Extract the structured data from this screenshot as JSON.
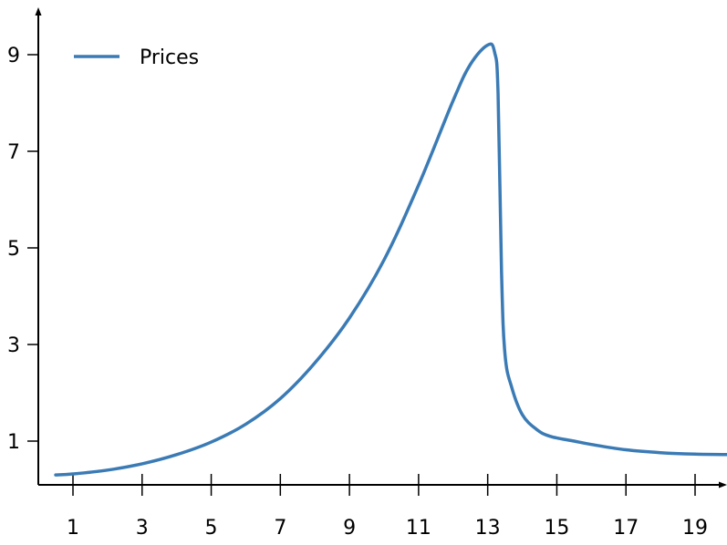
{
  "chart_data": {
    "type": "line",
    "title": "",
    "xlabel": "",
    "ylabel": "",
    "xlim": [
      0,
      20.0
    ],
    "ylim": [
      0,
      10
    ],
    "x_ticks": [
      1,
      3,
      5,
      7,
      9,
      11,
      13,
      15,
      17,
      19
    ],
    "y_ticks": [
      1,
      3,
      5,
      7,
      9
    ],
    "grid": false,
    "legend": {
      "position": "top-left"
    },
    "series": [
      {
        "name": "Prices",
        "color": "#3b7bb5",
        "x": [
          0.5,
          1,
          2,
          3,
          4,
          5,
          6,
          7,
          8,
          9,
          10,
          11,
          12,
          12.5,
          13,
          13.2,
          13.3,
          13.4,
          13.5,
          13.7,
          14,
          14.4,
          14.8,
          15.5,
          16,
          17,
          18,
          19,
          20
        ],
        "y": [
          0.3,
          0.32,
          0.4,
          0.53,
          0.72,
          0.98,
          1.35,
          1.88,
          2.62,
          3.55,
          4.75,
          6.3,
          8.05,
          8.8,
          9.2,
          9.05,
          8.2,
          4.5,
          2.8,
          2.1,
          1.55,
          1.25,
          1.1,
          1.0,
          0.93,
          0.82,
          0.76,
          0.73,
          0.72
        ]
      }
    ]
  }
}
